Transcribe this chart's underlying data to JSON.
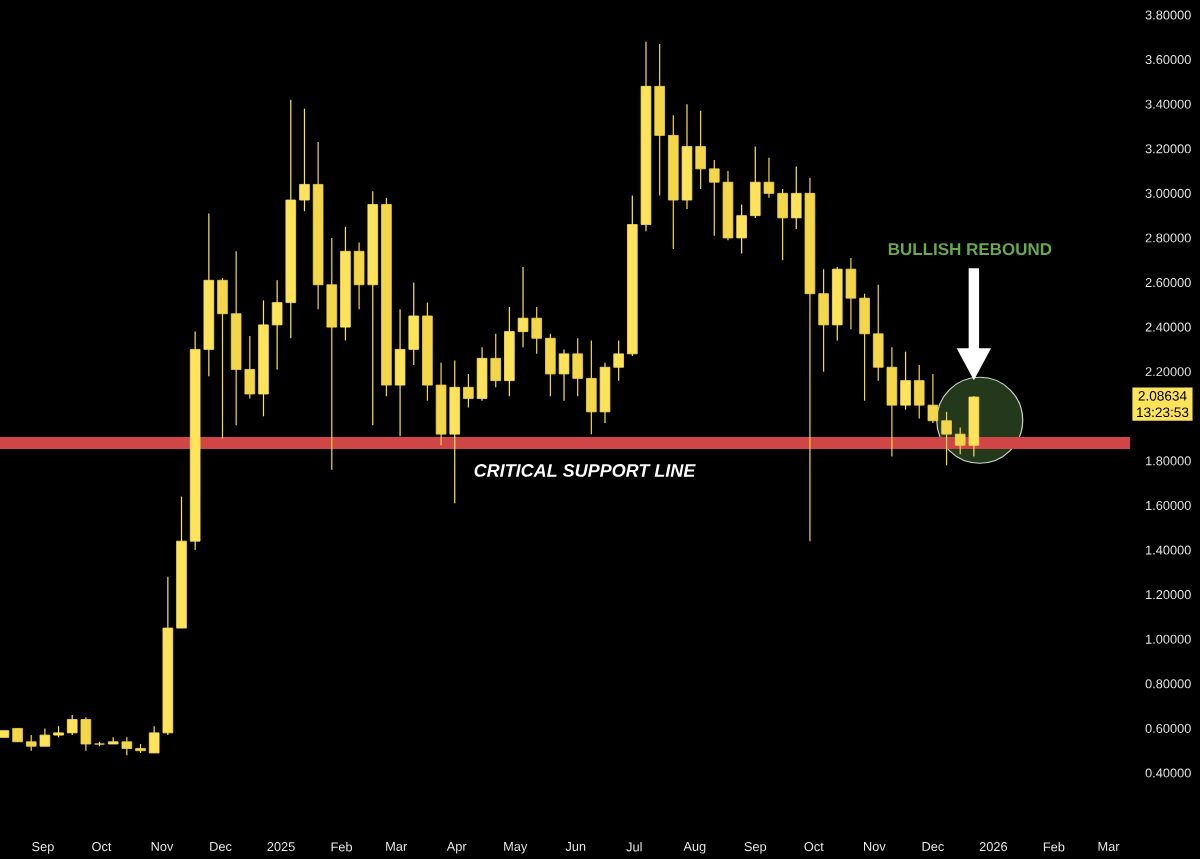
{
  "chart_data": {
    "type": "candlestick",
    "color": "#fde35c",
    "x": [
      "2024-08-12",
      "2024-08-19",
      "2024-08-26",
      "2024-09-02",
      "2024-09-09",
      "2024-09-16",
      "2024-09-23",
      "2024-09-30",
      "2024-10-07",
      "2024-10-14",
      "2024-10-21",
      "2024-10-28",
      "2024-11-04",
      "2024-11-11",
      "2024-11-18",
      "2024-11-25",
      "2024-12-02",
      "2024-12-09",
      "2024-12-16",
      "2024-12-23",
      "2024-12-30",
      "2025-01-06",
      "2025-01-13",
      "2025-01-20",
      "2025-01-27",
      "2025-02-03",
      "2025-02-10",
      "2025-02-17",
      "2025-02-24",
      "2025-03-03",
      "2025-03-10",
      "2025-03-17",
      "2025-03-24",
      "2025-03-31",
      "2025-04-07",
      "2025-04-14",
      "2025-04-21",
      "2025-04-28",
      "2025-05-05",
      "2025-05-12",
      "2025-05-19",
      "2025-05-26",
      "2025-06-02",
      "2025-06-09",
      "2025-06-16",
      "2025-06-23",
      "2025-06-30",
      "2025-07-07",
      "2025-07-14",
      "2025-07-21",
      "2025-07-28",
      "2025-08-04",
      "2025-08-11",
      "2025-08-18",
      "2025-08-25",
      "2025-09-01",
      "2025-09-08",
      "2025-09-15",
      "2025-09-22",
      "2025-09-29",
      "2025-10-06",
      "2025-10-13",
      "2025-10-20",
      "2025-10-27",
      "2025-11-03",
      "2025-11-10",
      "2025-11-17",
      "2025-11-24",
      "2025-12-01",
      "2025-12-08",
      "2025-12-15",
      "2025-12-22"
    ],
    "ohlc": [
      [
        0.56,
        0.59,
        0.56,
        0.59
      ],
      [
        0.6,
        0.6,
        0.54,
        0.54
      ],
      [
        0.54,
        0.57,
        0.5,
        0.52
      ],
      [
        0.52,
        0.6,
        0.52,
        0.57
      ],
      [
        0.57,
        0.61,
        0.56,
        0.58
      ],
      [
        0.58,
        0.66,
        0.57,
        0.64
      ],
      [
        0.64,
        0.65,
        0.5,
        0.53
      ],
      [
        0.53,
        0.54,
        0.52,
        0.53
      ],
      [
        0.53,
        0.56,
        0.53,
        0.54
      ],
      [
        0.54,
        0.56,
        0.48,
        0.51
      ],
      [
        0.51,
        0.53,
        0.49,
        0.5
      ],
      [
        0.49,
        0.61,
        0.49,
        0.58
      ],
      [
        0.58,
        1.28,
        0.57,
        1.05
      ],
      [
        1.05,
        1.64,
        1.05,
        1.44
      ],
      [
        1.44,
        2.38,
        1.4,
        2.3
      ],
      [
        2.3,
        2.91,
        2.18,
        2.61
      ],
      [
        2.61,
        2.62,
        1.9,
        2.46
      ],
      [
        2.46,
        2.74,
        1.96,
        2.21
      ],
      [
        2.21,
        2.36,
        2.08,
        2.1
      ],
      [
        2.1,
        2.52,
        2.0,
        2.41
      ],
      [
        2.41,
        2.61,
        2.21,
        2.51
      ],
      [
        2.51,
        3.42,
        2.35,
        2.97
      ],
      [
        2.97,
        3.38,
        2.92,
        3.04
      ],
      [
        3.04,
        3.23,
        2.48,
        2.59
      ],
      [
        2.59,
        2.8,
        1.76,
        2.4
      ],
      [
        2.4,
        2.85,
        2.34,
        2.74
      ],
      [
        2.74,
        2.78,
        2.48,
        2.59
      ],
      [
        2.59,
        3.01,
        1.96,
        2.95
      ],
      [
        2.95,
        2.98,
        2.09,
        2.14
      ],
      [
        2.14,
        2.48,
        1.91,
        2.3
      ],
      [
        2.3,
        2.6,
        2.23,
        2.45
      ],
      [
        2.45,
        2.51,
        2.07,
        2.14
      ],
      [
        2.14,
        2.24,
        1.87,
        1.92
      ],
      [
        1.92,
        2.25,
        1.61,
        2.13
      ],
      [
        2.13,
        2.19,
        2.04,
        2.08
      ],
      [
        2.08,
        2.31,
        2.07,
        2.26
      ],
      [
        2.26,
        2.37,
        2.13,
        2.16
      ],
      [
        2.16,
        2.49,
        2.09,
        2.38
      ],
      [
        2.38,
        2.67,
        2.31,
        2.44
      ],
      [
        2.44,
        2.49,
        2.28,
        2.35
      ],
      [
        2.35,
        2.37,
        2.09,
        2.19
      ],
      [
        2.19,
        2.3,
        2.07,
        2.28
      ],
      [
        2.28,
        2.35,
        2.09,
        2.17
      ],
      [
        2.17,
        2.34,
        1.92,
        2.02
      ],
      [
        2.02,
        2.24,
        1.97,
        2.22
      ],
      [
        2.22,
        2.34,
        2.16,
        2.28
      ],
      [
        2.28,
        2.99,
        2.27,
        2.86
      ],
      [
        2.86,
        3.68,
        2.83,
        3.48
      ],
      [
        3.48,
        3.67,
        2.99,
        3.26
      ],
      [
        3.26,
        3.35,
        2.75,
        2.97
      ],
      [
        2.97,
        3.4,
        2.93,
        3.21
      ],
      [
        3.21,
        3.37,
        3.02,
        3.11
      ],
      [
        3.11,
        3.15,
        2.81,
        3.05
      ],
      [
        3.05,
        3.1,
        2.79,
        2.8
      ],
      [
        2.8,
        2.95,
        2.73,
        2.9
      ],
      [
        2.9,
        3.21,
        2.89,
        3.05
      ],
      [
        3.05,
        3.16,
        2.98,
        3.0
      ],
      [
        3.0,
        3.02,
        2.7,
        2.89
      ],
      [
        2.89,
        3.12,
        2.84,
        3.0
      ],
      [
        3.0,
        3.07,
        1.44,
        2.55
      ],
      [
        2.55,
        2.66,
        2.2,
        2.41
      ],
      [
        2.41,
        2.67,
        2.34,
        2.66
      ],
      [
        2.66,
        2.71,
        2.39,
        2.53
      ],
      [
        2.53,
        2.55,
        2.07,
        2.37
      ],
      [
        2.37,
        2.59,
        2.16,
        2.22
      ],
      [
        2.22,
        2.31,
        1.82,
        2.05
      ],
      [
        2.05,
        2.29,
        2.03,
        2.16
      ],
      [
        2.16,
        2.23,
        1.99,
        2.05
      ],
      [
        2.05,
        2.19,
        1.97,
        1.98
      ],
      [
        1.98,
        2.02,
        1.78,
        1.92
      ],
      [
        1.92,
        1.95,
        1.83,
        1.87
      ],
      [
        1.87,
        2.09,
        1.82,
        2.08634
      ]
    ],
    "colors": [
      "#fde35c",
      "#f3d64a",
      "#f3d64a",
      "#fde35c",
      "#fde35c",
      "#fde35c",
      "#f3d64a",
      "#fde35c",
      "#fde35c",
      "#f3d64a",
      "#f3d64a",
      "#fde35c",
      "#fde35c",
      "#fde35c",
      "#fde35c",
      "#fde35c",
      "#f3d64a",
      "#f3d64a",
      "#f3d64a",
      "#fde35c",
      "#fde35c",
      "#fde35c",
      "#fde35c",
      "#f3d64a",
      "#f3d64a",
      "#fde35c",
      "#f3d64a",
      "#fde35c",
      "#f3d64a",
      "#fde35c",
      "#fde35c",
      "#f3d64a",
      "#f3d64a",
      "#fde35c",
      "#f3d64a",
      "#fde35c",
      "#f3d64a",
      "#fde35c",
      "#fde35c",
      "#f3d64a",
      "#f3d64a",
      "#fde35c",
      "#f3d64a",
      "#f3d64a",
      "#fde35c",
      "#fde35c",
      "#fde35c",
      "#fde35c",
      "#f3d64a",
      "#f3d64a",
      "#fde35c",
      "#f3d64a",
      "#f3d64a",
      "#f3d64a",
      "#fde35c",
      "#fde35c",
      "#f3d64a",
      "#f3d64a",
      "#fde35c",
      "#f3d64a",
      "#f3d64a",
      "#fde35c",
      "#f3d64a",
      "#f3d64a",
      "#f3d64a",
      "#f3d64a",
      "#fde35c",
      "#f3d64a",
      "#f3d64a",
      "#f3d64a",
      "#f3d64a",
      "#fde35c"
    ],
    "xlim": [
      "2024-08-10",
      "2026-03-12"
    ],
    "xticks": [
      {
        "value": "2024-09-01",
        "label": "Sep"
      },
      {
        "value": "2024-10-01",
        "label": "Oct"
      },
      {
        "value": "2024-11-01",
        "label": "Nov"
      },
      {
        "value": "2024-12-01",
        "label": "Dec"
      },
      {
        "value": "2025-01-01",
        "label": "2025"
      },
      {
        "value": "2025-02-01",
        "label": "Feb"
      },
      {
        "value": "2025-03-01",
        "label": "Mar"
      },
      {
        "value": "2025-04-01",
        "label": "Apr"
      },
      {
        "value": "2025-05-01",
        "label": "May"
      },
      {
        "value": "2025-06-01",
        "label": "Jun"
      },
      {
        "value": "2025-07-01",
        "label": "Jul"
      },
      {
        "value": "2025-08-01",
        "label": "Aug"
      },
      {
        "value": "2025-09-01",
        "label": "Sep"
      },
      {
        "value": "2025-10-01",
        "label": "Oct"
      },
      {
        "value": "2025-11-01",
        "label": "Nov"
      },
      {
        "value": "2025-12-01",
        "label": "Dec"
      },
      {
        "value": "2026-01-01",
        "label": "2026"
      },
      {
        "value": "2026-02-01",
        "label": "Feb"
      },
      {
        "value": "2026-03-01",
        "label": "Mar"
      }
    ],
    "ylim": [
      0.4,
      3.8
    ],
    "yticks": [
      {
        "value": 0.4,
        "label": "0.40000"
      },
      {
        "value": 0.6,
        "label": "0.60000"
      },
      {
        "value": 0.8,
        "label": "0.80000"
      },
      {
        "value": 1.0,
        "label": "1.00000"
      },
      {
        "value": 1.2,
        "label": "1.20000"
      },
      {
        "value": 1.4,
        "label": "1.40000"
      },
      {
        "value": 1.6,
        "label": "1.60000"
      },
      {
        "value": 1.8,
        "label": "1.80000"
      },
      {
        "value": 2.2,
        "label": "2.20000"
      },
      {
        "value": 2.4,
        "label": "2.40000"
      },
      {
        "value": 2.6,
        "label": "2.60000"
      },
      {
        "value": 2.8,
        "label": "2.80000"
      },
      {
        "value": 3.0,
        "label": "3.00000"
      },
      {
        "value": 3.2,
        "label": "3.20000"
      },
      {
        "value": 3.4,
        "label": "3.40000"
      },
      {
        "value": 3.6,
        "label": "3.60000"
      },
      {
        "value": 3.8,
        "label": "3.80000"
      }
    ],
    "ref_lines": [
      {
        "axis": "y",
        "value": 1.88,
        "label": "CRITICAL SUPPORT LINE",
        "color": "#d04545"
      }
    ],
    "annotations": [
      "BULLISH REBOUND",
      "2.08634",
      "13:23:53"
    ],
    "grid": false
  }
}
